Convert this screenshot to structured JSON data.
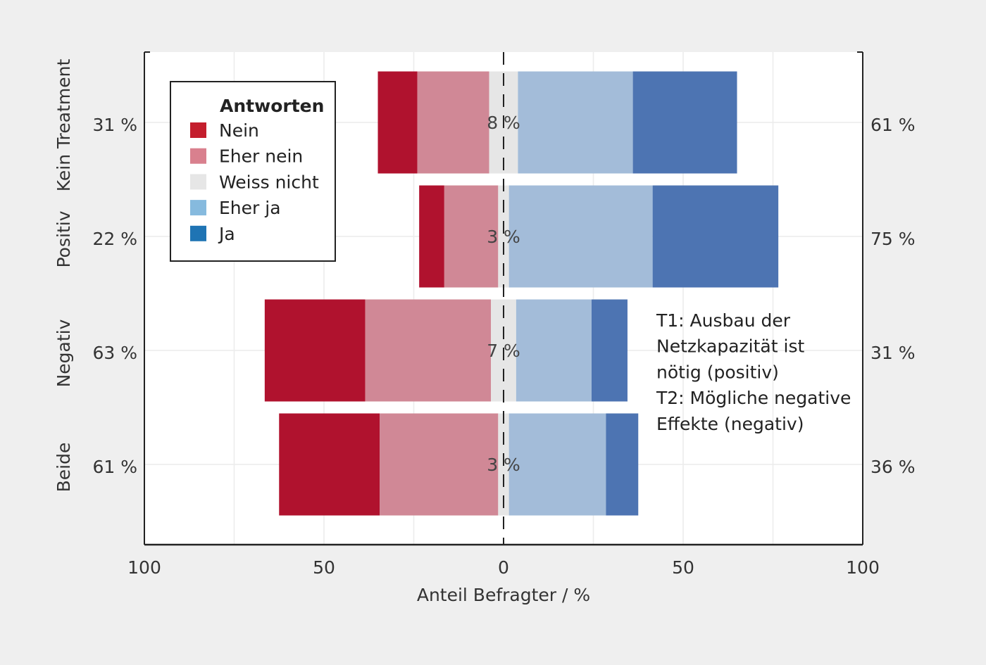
{
  "chart_data": {
    "type": "bar",
    "layout": "diverging-stacked-horizontal",
    "categories": [
      "Kein Treatment",
      "Positiv",
      "Negativ",
      "Beide"
    ],
    "xlabel": "Anteil Befragter / %",
    "xlim": [
      -100,
      100
    ],
    "x_ticks": [
      {
        "value": -100,
        "label": "100"
      },
      {
        "value": -50,
        "label": "50"
      },
      {
        "value": 0,
        "label": "0"
      },
      {
        "value": 50,
        "label": "50"
      },
      {
        "value": 100,
        "label": "100"
      }
    ],
    "grid": true,
    "legend": {
      "title": "Antworten",
      "position": "top-left"
    },
    "series": [
      {
        "name": "Nein",
        "color": "#b0122e",
        "values": [
          11,
          7,
          28,
          28
        ]
      },
      {
        "name": "Eher nein",
        "color": "#d08896",
        "values": [
          20,
          15,
          35,
          33
        ]
      },
      {
        "name": "Weiss nicht",
        "color": "#e6e6e6",
        "values": [
          8,
          3,
          7,
          3
        ]
      },
      {
        "name": "Eher ja",
        "color": "#a3bcd9",
        "values": [
          32,
          40,
          21,
          27
        ]
      },
      {
        "name": "Ja",
        "color": "#4d74b2",
        "values": [
          29,
          35,
          10,
          9
        ]
      }
    ],
    "legend_swatch_colors": [
      "#c41e2d",
      "#d9808e",
      "#e6e6e6",
      "#86bade",
      "#1f74b4"
    ],
    "center_labels": [
      "8 %",
      "3 %",
      "7 %",
      "3 %"
    ],
    "left_totals": [
      "31 %",
      "22 %",
      "63 %",
      "61 %"
    ],
    "right_totals": [
      "61 %",
      "75 %",
      "31 %",
      "36 %"
    ],
    "annotation": [
      "T1: Ausbau der",
      "Netzkapazität ist",
      "nötig (positiv)",
      "T2: Mögliche negative",
      "Effekte (negativ)"
    ]
  }
}
